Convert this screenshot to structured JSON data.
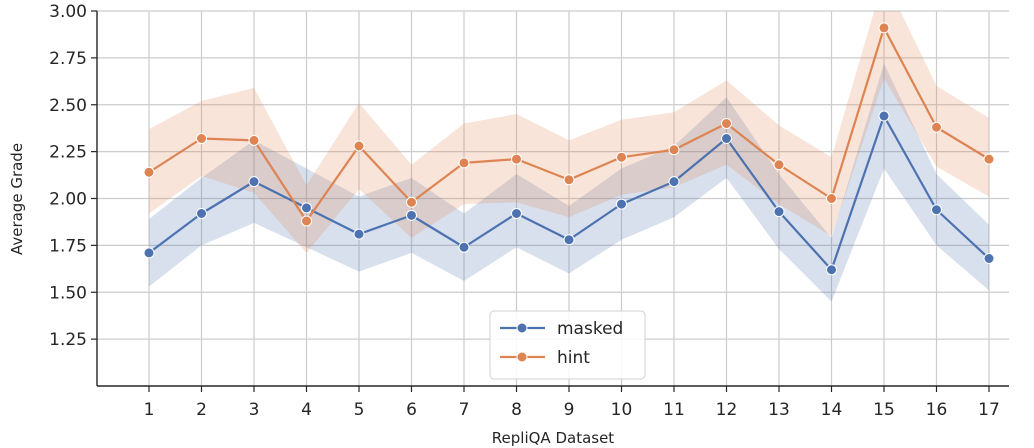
{
  "chart_data": {
    "type": "line",
    "title": "",
    "xlabel": "RepliQA Dataset",
    "ylabel": "Average Grade",
    "categories": [
      "1",
      "2",
      "3",
      "4",
      "5",
      "6",
      "7",
      "8",
      "9",
      "10",
      "11",
      "12",
      "13",
      "14",
      "15",
      "16",
      "17"
    ],
    "ylim": [
      1.0,
      3.0
    ],
    "yticks": [
      "1.25",
      "1.50",
      "1.75",
      "2.00",
      "2.25",
      "2.50",
      "2.75",
      "3.00"
    ],
    "grid": true,
    "legend_position": "bottom-center",
    "series": [
      {
        "name": "masked",
        "color": "#4c72b0",
        "values": [
          1.71,
          1.92,
          2.09,
          1.95,
          1.81,
          1.91,
          1.74,
          1.92,
          1.78,
          1.97,
          2.09,
          2.32,
          1.93,
          1.62,
          2.44,
          1.94,
          1.68
        ],
        "ci_lower": [
          1.53,
          1.75,
          1.87,
          1.74,
          1.61,
          1.71,
          1.56,
          1.74,
          1.6,
          1.78,
          1.9,
          2.11,
          1.73,
          1.45,
          2.16,
          1.75,
          1.51
        ],
        "ci_upper": [
          1.89,
          2.11,
          2.31,
          2.16,
          2.01,
          2.11,
          1.92,
          2.13,
          1.96,
          2.16,
          2.28,
          2.54,
          2.13,
          1.79,
          2.72,
          2.13,
          1.86
        ]
      },
      {
        "name": "hint",
        "color": "#dd8452",
        "values": [
          2.14,
          2.32,
          2.31,
          1.88,
          2.28,
          1.98,
          2.19,
          2.21,
          2.1,
          2.22,
          2.26,
          2.4,
          2.18,
          2.0,
          2.91,
          2.38,
          2.21
        ],
        "ci_lower": [
          1.92,
          2.12,
          2.03,
          1.71,
          2.05,
          1.79,
          1.97,
          1.98,
          1.9,
          2.02,
          2.06,
          2.18,
          1.97,
          1.8,
          2.64,
          2.17,
          2.01
        ],
        "ci_upper": [
          2.37,
          2.52,
          2.59,
          2.07,
          2.51,
          2.18,
          2.4,
          2.45,
          2.31,
          2.42,
          2.46,
          2.63,
          2.39,
          2.22,
          3.18,
          2.6,
          2.43
        ]
      }
    ]
  }
}
